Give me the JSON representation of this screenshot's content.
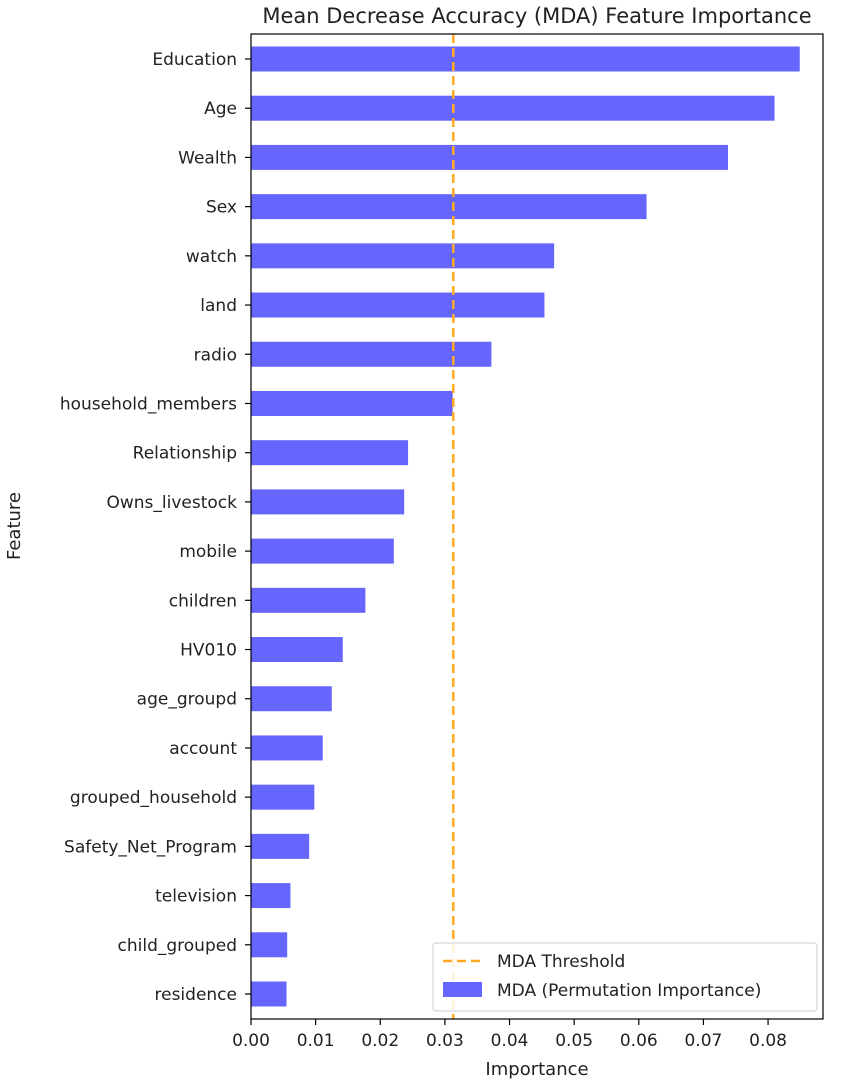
{
  "chart_data": {
    "type": "bar",
    "orientation": "horizontal",
    "title": "Mean Decrease Accuracy (MDA) Feature Importance",
    "xlabel": "Importance",
    "ylabel": "Feature",
    "xlim": [
      0,
      0.0885
    ],
    "xticks": [
      "0.00",
      "0.01",
      "0.02",
      "0.03",
      "0.04",
      "0.05",
      "0.06",
      "0.07",
      "0.08"
    ],
    "categories": [
      "Education",
      "Age",
      "Wealth",
      "Sex",
      "watch",
      "land",
      "radio",
      "household_members",
      "Relationship",
      "Owns_livestock",
      "mobile",
      "children",
      "HV010",
      "age_groupd",
      "account",
      "grouped_household",
      "Safety_Net_Program",
      "television",
      "child_grouped",
      "residence"
    ],
    "series": [
      {
        "name": "MDA (Permutation Importance)",
        "color": "#6666ff",
        "values": [
          0.0849,
          0.081,
          0.0738,
          0.0612,
          0.0469,
          0.0454,
          0.0372,
          0.0312,
          0.0243,
          0.0237,
          0.0221,
          0.0177,
          0.0142,
          0.0125,
          0.0111,
          0.0098,
          0.009,
          0.0061,
          0.0056,
          0.0055
        ]
      }
    ],
    "threshold": {
      "name": "MDA Threshold",
      "value": 0.0313,
      "color": "#ffaa22",
      "style": "dashed"
    },
    "grid": false,
    "legend_position": "lower-right"
  }
}
